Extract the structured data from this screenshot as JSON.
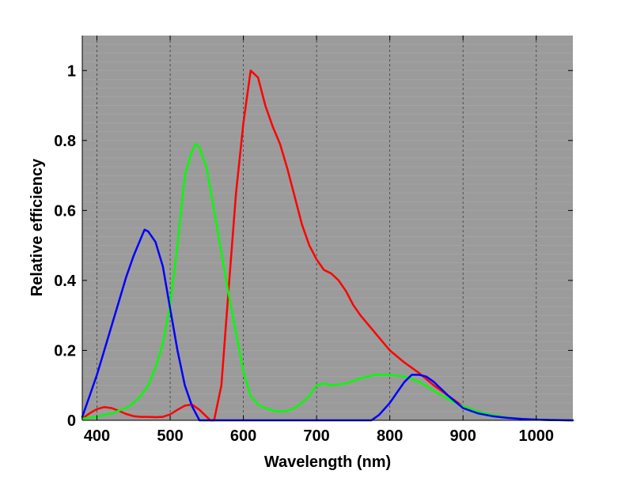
{
  "chart_data": {
    "type": "line",
    "title": "",
    "xlabel": "Wavelength (nm)",
    "ylabel": "Relative efficiency",
    "xlim": [
      380,
      1050
    ],
    "ylim": [
      0,
      1.1
    ],
    "x_ticks": [
      400,
      500,
      600,
      700,
      800,
      900,
      1000
    ],
    "y_ticks": [
      0,
      0.2,
      0.4,
      0.6,
      0.8,
      1
    ],
    "y_tick_labels": [
      "0",
      "0.2",
      "0.4",
      "0.6",
      "0.8",
      "1"
    ],
    "grid": "vertical dashed lines at x ticks; faint horizontal lines",
    "background_color": "#9b9b9b",
    "legend": "none",
    "series": [
      {
        "color": "#ff0000",
        "x": [
          380,
          390,
          400,
          410,
          420,
          430,
          440,
          450,
          460,
          470,
          480,
          490,
          500,
          510,
          520,
          530,
          540,
          550,
          555,
          560,
          570,
          580,
          590,
          600,
          610,
          620,
          630,
          640,
          650,
          660,
          670,
          680,
          690,
          700,
          710,
          720,
          730,
          740,
          750,
          760,
          780,
          800,
          820,
          840,
          860,
          880,
          900,
          920,
          940,
          960,
          980,
          1000,
          1020,
          1050
        ],
        "y": [
          0.005,
          0.02,
          0.032,
          0.038,
          0.035,
          0.027,
          0.018,
          0.012,
          0.01,
          0.01,
          0.009,
          0.01,
          0.017,
          0.03,
          0.042,
          0.045,
          0.03,
          0.01,
          0.0,
          0.0,
          0.1,
          0.38,
          0.65,
          0.85,
          1.0,
          0.98,
          0.9,
          0.84,
          0.79,
          0.72,
          0.64,
          0.56,
          0.5,
          0.46,
          0.43,
          0.42,
          0.4,
          0.37,
          0.33,
          0.3,
          0.25,
          0.2,
          0.165,
          0.135,
          0.1,
          0.07,
          0.04,
          0.025,
          0.015,
          0.008,
          0.004,
          0.002,
          0.001,
          0.0
        ]
      },
      {
        "color": "#00ff00",
        "x": [
          380,
          400,
          420,
          440,
          450,
          460,
          470,
          480,
          490,
          500,
          510,
          520,
          530,
          535,
          540,
          550,
          560,
          570,
          580,
          590,
          600,
          610,
          620,
          630,
          640,
          650,
          660,
          670,
          680,
          690,
          700,
          710,
          720,
          740,
          760,
          780,
          800,
          820,
          840,
          860,
          880,
          900,
          920,
          940,
          960,
          980,
          1000,
          1020,
          1050
        ],
        "y": [
          0.005,
          0.01,
          0.02,
          0.035,
          0.05,
          0.07,
          0.1,
          0.15,
          0.22,
          0.33,
          0.5,
          0.7,
          0.77,
          0.79,
          0.78,
          0.72,
          0.6,
          0.48,
          0.36,
          0.25,
          0.14,
          0.07,
          0.045,
          0.035,
          0.028,
          0.025,
          0.027,
          0.035,
          0.05,
          0.07,
          0.1,
          0.105,
          0.1,
          0.105,
          0.12,
          0.13,
          0.13,
          0.125,
          0.11,
          0.085,
          0.06,
          0.04,
          0.025,
          0.015,
          0.008,
          0.004,
          0.002,
          0.001,
          0.0
        ]
      },
      {
        "color": "#0000ff",
        "x": [
          380,
          390,
          400,
          410,
          420,
          430,
          440,
          450,
          460,
          465,
          470,
          480,
          490,
          500,
          510,
          520,
          530,
          540,
          550,
          600,
          700,
          775,
          785,
          800,
          810,
          820,
          830,
          840,
          850,
          860,
          880,
          900,
          920,
          940,
          960,
          980,
          1000,
          1020,
          1050
        ],
        "y": [
          0.01,
          0.07,
          0.13,
          0.2,
          0.27,
          0.34,
          0.41,
          0.47,
          0.52,
          0.545,
          0.54,
          0.51,
          0.44,
          0.32,
          0.2,
          0.1,
          0.04,
          0.0,
          0.0,
          0.0,
          0.0,
          0.0,
          0.015,
          0.05,
          0.08,
          0.11,
          0.13,
          0.13,
          0.125,
          0.11,
          0.07,
          0.035,
          0.02,
          0.012,
          0.007,
          0.004,
          0.002,
          0.001,
          0.0
        ]
      }
    ]
  }
}
